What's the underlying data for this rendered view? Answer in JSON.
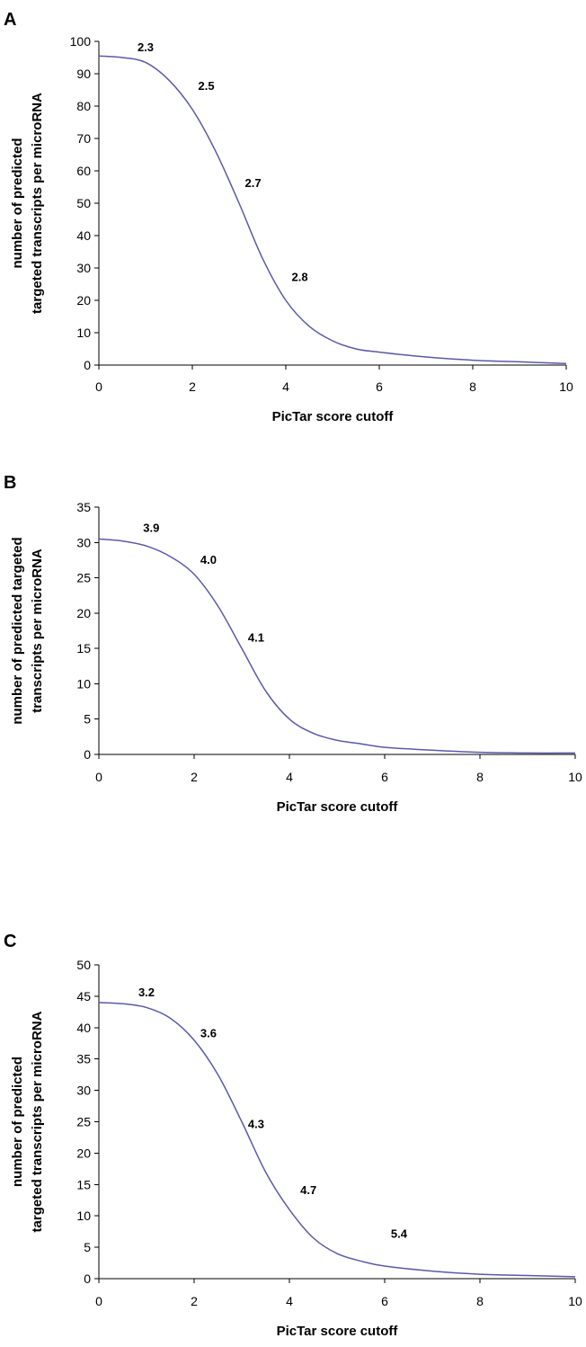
{
  "chart_data": [
    {
      "panel": "A",
      "type": "line",
      "xlabel": "PicTar score cutoff",
      "ylabel_lines": [
        "number of predicted",
        "targeted transcripts per microRNA"
      ],
      "xlim": [
        0,
        10
      ],
      "ylim": [
        0,
        100
      ],
      "xticks": [
        0,
        2,
        4,
        6,
        8,
        10
      ],
      "yticks": [
        0,
        10,
        20,
        30,
        40,
        50,
        60,
        70,
        80,
        90,
        100
      ],
      "grid": false,
      "series": [
        {
          "x": [
            0,
            0.5,
            1,
            1.5,
            2,
            2.5,
            3,
            3.5,
            4,
            4.5,
            5,
            5.5,
            6,
            7,
            8,
            9,
            10
          ],
          "y": [
            95.5,
            95,
            93.5,
            88,
            79,
            66,
            50,
            33,
            20,
            12,
            7.5,
            5,
            4,
            2.5,
            1.5,
            1,
            0.5
          ]
        }
      ],
      "annotations": [
        {
          "text": "2.3",
          "x": 1.0,
          "y": 97
        },
        {
          "text": "2.5",
          "x": 2.3,
          "y": 85
        },
        {
          "text": "2.7",
          "x": 3.3,
          "y": 55
        },
        {
          "text": "2.8",
          "x": 4.3,
          "y": 26
        }
      ]
    },
    {
      "panel": "B",
      "type": "line",
      "xlabel": "PicTar score cutoff",
      "ylabel_lines": [
        "number of predicted targeted",
        "transcripts per microRNA"
      ],
      "xlim": [
        0,
        10
      ],
      "ylim": [
        0,
        35
      ],
      "xticks": [
        0,
        2,
        4,
        6,
        8,
        10
      ],
      "yticks": [
        0,
        5,
        10,
        15,
        20,
        25,
        30,
        35
      ],
      "grid": false,
      "series": [
        {
          "x": [
            0,
            0.5,
            1,
            1.5,
            2,
            2.5,
            3,
            3.5,
            4,
            4.5,
            5,
            5.5,
            6,
            7,
            8,
            9,
            10
          ],
          "y": [
            30.5,
            30.2,
            29.5,
            28,
            25.5,
            21,
            15,
            9,
            5,
            3,
            2,
            1.5,
            1,
            0.6,
            0.3,
            0.2,
            0.2
          ]
        }
      ],
      "annotations": [
        {
          "text": "3.9",
          "x": 1.1,
          "y": 31.5
        },
        {
          "text": "4.0",
          "x": 2.3,
          "y": 27
        },
        {
          "text": "4.1",
          "x": 3.3,
          "y": 16
        }
      ]
    },
    {
      "panel": "C",
      "type": "line",
      "xlabel": "PicTar score cutoff",
      "ylabel_lines": [
        "number of predicted",
        "targeted transcripts per microRNA"
      ],
      "xlim": [
        0,
        10
      ],
      "ylim": [
        0,
        50
      ],
      "xticks": [
        0,
        2,
        4,
        6,
        8,
        10
      ],
      "yticks": [
        0,
        5,
        10,
        15,
        20,
        25,
        30,
        35,
        40,
        45,
        50
      ],
      "grid": false,
      "series": [
        {
          "x": [
            0,
            0.5,
            1,
            1.5,
            2,
            2.5,
            3,
            3.5,
            4,
            4.5,
            5,
            5.5,
            6,
            7,
            8,
            9,
            10
          ],
          "y": [
            44,
            43.8,
            43.2,
            41.5,
            38,
            32.5,
            25,
            17,
            11,
            6.5,
            4,
            2.8,
            2,
            1.2,
            0.7,
            0.5,
            0.3
          ]
        }
      ],
      "annotations": [
        {
          "text": "3.2",
          "x": 1.0,
          "y": 45
        },
        {
          "text": "3.6",
          "x": 2.3,
          "y": 38.5
        },
        {
          "text": "4.3",
          "x": 3.3,
          "y": 24
        },
        {
          "text": "4.7",
          "x": 4.4,
          "y": 13.5
        },
        {
          "text": "5.4",
          "x": 6.3,
          "y": 6.5
        }
      ]
    }
  ]
}
